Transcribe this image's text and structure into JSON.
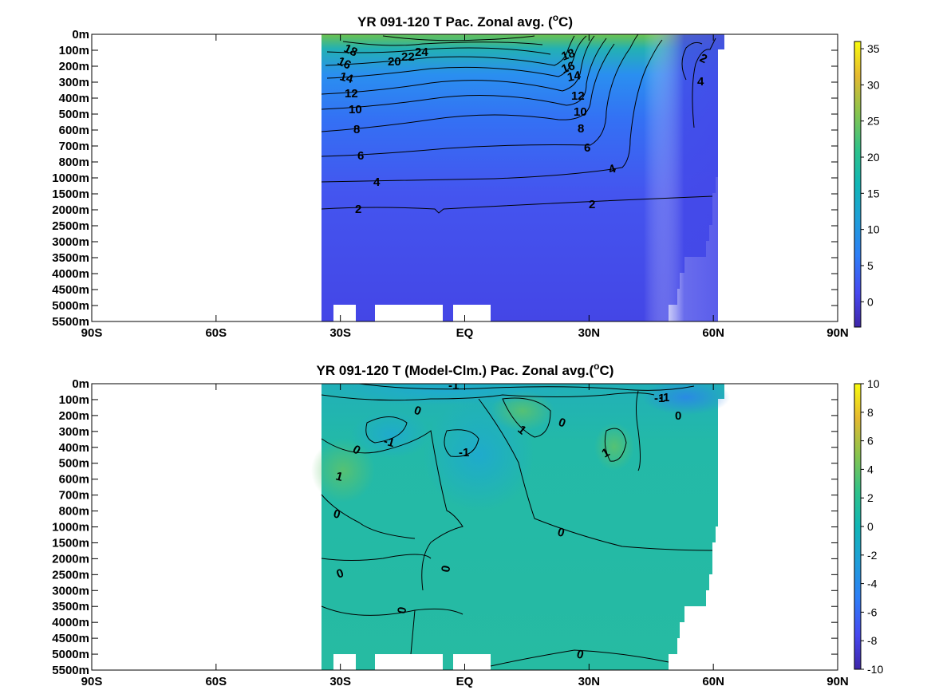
{
  "chart_data": [
    {
      "type": "heatmap",
      "title": "YR 091-120 T Pac. Zonal avg. (",
      "title_sup": "o",
      "title_end": "C)",
      "x_ticks": [
        "90S",
        "60S",
        "30S",
        "EQ",
        "30N",
        "60N",
        "90N"
      ],
      "y_ticks": [
        "0m",
        "100m",
        "200m",
        "300m",
        "400m",
        "500m",
        "600m",
        "700m",
        "800m",
        "1000m",
        "1500m",
        "2000m",
        "2500m",
        "3000m",
        "3500m",
        "4000m",
        "4500m",
        "5000m",
        "5500m"
      ],
      "colorbar": {
        "ticks": [
          "0",
          "5",
          "10",
          "15",
          "20",
          "25",
          "30",
          "35"
        ],
        "range": [
          -3.5,
          36
        ],
        "colormap": "parula"
      },
      "contour_labels": [
        "18",
        "16",
        "14",
        "12",
        "10",
        "8",
        "6",
        "4",
        "2",
        "20",
        "22",
        "24",
        "18",
        "16",
        "14",
        "12",
        "10",
        "8",
        "6",
        "4",
        "2",
        "2",
        "4"
      ],
      "data_extent_lat": [
        -33,
        61
      ],
      "depth_profile_note_values": [
        {
          "depth_m": 0,
          "equator_temp": 28,
          "south30_temp": 20,
          "north30_temp": 22
        },
        {
          "depth_m": 500,
          "equator_temp": 11,
          "south30_temp": 10,
          "north30_temp": 10
        },
        {
          "depth_m": 1000,
          "equator_temp": 4,
          "south30_temp": 4.5,
          "north30_temp": 4
        },
        {
          "depth_m": 2000,
          "equator_temp": 2,
          "south30_temp": 2,
          "north30_temp": 2
        },
        {
          "depth_m": 5500,
          "equator_temp": 1,
          "south30_temp": 1,
          "north30_temp": 1
        }
      ]
    },
    {
      "type": "heatmap",
      "title": "YR 091-120 T (Model-Clm.) Pac. Zonal avg.(",
      "title_sup": "o",
      "title_end": "C)",
      "x_ticks": [
        "90S",
        "60S",
        "30S",
        "EQ",
        "30N",
        "60N",
        "90N"
      ],
      "y_ticks": [
        "0m",
        "100m",
        "200m",
        "300m",
        "400m",
        "500m",
        "600m",
        "700m",
        "800m",
        "1000m",
        "1500m",
        "2000m",
        "2500m",
        "3000m",
        "3500m",
        "4000m",
        "4500m",
        "5000m",
        "5500m"
      ],
      "colorbar": {
        "ticks": [
          "10",
          "8",
          "6",
          "4",
          "2",
          "0",
          "-2",
          "-4",
          "-6",
          "-8",
          "-10"
        ],
        "range": [
          -10,
          10
        ],
        "colormap": "parula"
      },
      "contour_labels": [
        "-1",
        "-1",
        "0",
        "0",
        "1",
        "0",
        "-1",
        "0",
        "-1",
        "1",
        "-1",
        "1",
        "0",
        "0",
        "0",
        "0",
        "0",
        "0",
        "0"
      ],
      "data_extent_lat": [
        -33,
        61
      ]
    }
  ]
}
